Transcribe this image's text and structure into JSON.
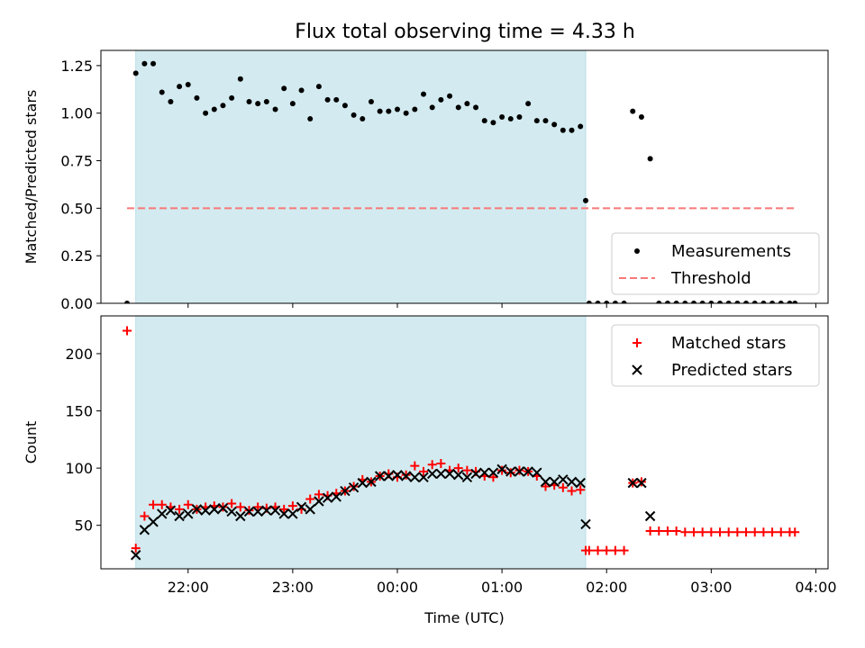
{
  "chart_data": [
    {
      "type": "scatter",
      "title": "Flux total observing time = 4.33 h",
      "ylabel": "Matched/Predicted stars",
      "ylim": [
        0,
        1.33
      ],
      "yticks": [
        0.0,
        0.25,
        0.5,
        0.75,
        1.0,
        1.25
      ],
      "ytick_labels": [
        "0.00",
        "0.25",
        "0.50",
        "0.75",
        "1.00",
        "1.25"
      ],
      "legend_position": "bottom-right",
      "shaded_region": {
        "x": [
          "21:30",
          "01:48"
        ],
        "color": "#d3ebf0"
      },
      "series": [
        {
          "name": "Measurements",
          "marker": "dot",
          "color": "#000000",
          "x": [
            "21:25",
            "21:30",
            "21:35",
            "21:40",
            "21:45",
            "21:50",
            "21:55",
            "22:00",
            "22:05",
            "22:10",
            "22:15",
            "22:20",
            "22:25",
            "22:30",
            "22:35",
            "22:40",
            "22:45",
            "22:50",
            "22:55",
            "23:00",
            "23:05",
            "23:10",
            "23:15",
            "23:20",
            "23:25",
            "23:30",
            "23:35",
            "23:40",
            "23:45",
            "23:50",
            "23:55",
            "00:00",
            "00:05",
            "00:10",
            "00:15",
            "00:20",
            "00:25",
            "00:30",
            "00:35",
            "00:40",
            "00:45",
            "00:50",
            "00:55",
            "01:00",
            "01:05",
            "01:10",
            "01:15",
            "01:20",
            "01:25",
            "01:30",
            "01:35",
            "01:40",
            "01:45",
            "01:48",
            "01:50",
            "01:55",
            "02:00",
            "02:05",
            "02:10",
            "02:15",
            "02:20",
            "02:25",
            "02:30",
            "02:35",
            "02:40",
            "02:45",
            "02:50",
            "02:55",
            "03:00",
            "03:05",
            "03:10",
            "03:15",
            "03:20",
            "03:25",
            "03:30",
            "03:35",
            "03:40",
            "03:45",
            "03:48"
          ],
          "y": [
            0.0,
            1.21,
            1.26,
            1.26,
            1.11,
            1.06,
            1.14,
            1.15,
            1.08,
            1.0,
            1.02,
            1.04,
            1.08,
            1.18,
            1.06,
            1.05,
            1.06,
            1.02,
            1.13,
            1.05,
            1.12,
            0.97,
            1.14,
            1.07,
            1.07,
            1.04,
            0.99,
            0.97,
            1.06,
            1.01,
            1.01,
            1.02,
            1.0,
            1.02,
            1.1,
            1.03,
            1.07,
            1.09,
            1.03,
            1.05,
            1.03,
            0.96,
            0.95,
            0.98,
            0.97,
            0.98,
            1.05,
            0.96,
            0.96,
            0.94,
            0.91,
            0.91,
            0.93,
            0.54,
            0.0,
            0.0,
            0.0,
            0.0,
            0.0,
            1.01,
            0.98,
            0.76,
            0.0,
            0.0,
            0.0,
            0.0,
            0.0,
            0.0,
            0.0,
            0.0,
            0.0,
            0.0,
            0.0,
            0.0,
            0.0,
            0.0,
            0.0,
            0.0,
            0.0
          ]
        },
        {
          "name": "Threshold",
          "marker": "dashed-line",
          "color": "#f87878",
          "x": [
            "21:25",
            "03:48"
          ],
          "y": [
            0.5,
            0.5
          ]
        }
      ]
    },
    {
      "type": "scatter",
      "xlabel": "Time (UTC)",
      "ylabel": "Count",
      "ylim": [
        12,
        233
      ],
      "yticks": [
        50,
        100,
        150,
        200
      ],
      "ytick_labels": [
        "50",
        "100",
        "150",
        "200"
      ],
      "xticks": [
        "22:00",
        "23:00",
        "00:00",
        "01:00",
        "02:00",
        "03:00",
        "04:00"
      ],
      "legend_position": "top-right",
      "shaded_region": {
        "x": [
          "21:30",
          "01:48"
        ],
        "color": "#d3ebf0"
      },
      "series": [
        {
          "name": "Matched stars",
          "marker": "plus",
          "color": "#ff0000",
          "x": [
            "21:25",
            "21:30",
            "21:35",
            "21:40",
            "21:45",
            "21:50",
            "21:55",
            "22:00",
            "22:05",
            "22:10",
            "22:15",
            "22:20",
            "22:25",
            "22:30",
            "22:35",
            "22:40",
            "22:45",
            "22:50",
            "22:55",
            "23:00",
            "23:05",
            "23:10",
            "23:15",
            "23:20",
            "23:25",
            "23:30",
            "23:35",
            "23:40",
            "23:45",
            "23:50",
            "23:55",
            "00:00",
            "00:05",
            "00:10",
            "00:15",
            "00:20",
            "00:25",
            "00:30",
            "00:35",
            "00:40",
            "00:45",
            "00:50",
            "00:55",
            "01:00",
            "01:05",
            "01:10",
            "01:15",
            "01:20",
            "01:25",
            "01:30",
            "01:35",
            "01:40",
            "01:45",
            "01:48",
            "01:50",
            "01:55",
            "02:00",
            "02:05",
            "02:10",
            "02:15",
            "02:20",
            "02:25",
            "02:30",
            "02:35",
            "02:40",
            "02:45",
            "02:50",
            "02:55",
            "03:00",
            "03:05",
            "03:10",
            "03:15",
            "03:20",
            "03:25",
            "03:30",
            "03:35",
            "03:40",
            "03:45",
            "03:48"
          ],
          "y": [
            220,
            30,
            58,
            68,
            68,
            66,
            64,
            68,
            64,
            66,
            67,
            66,
            69,
            66,
            63,
            66,
            65,
            66,
            64,
            67,
            64,
            73,
            77,
            76,
            78,
            80,
            84,
            90,
            88,
            93,
            95,
            92,
            94,
            102,
            97,
            103,
            104,
            98,
            100,
            98,
            97,
            93,
            92,
            98,
            96,
            98,
            97,
            93,
            84,
            85,
            83,
            80,
            81,
            28,
            28,
            28,
            28,
            28,
            28,
            87,
            88,
            45,
            45,
            45,
            45,
            44,
            44,
            44,
            44,
            44,
            44,
            44,
            44,
            44,
            44,
            44,
            44,
            44,
            44
          ]
        },
        {
          "name": "Predicted stars",
          "marker": "x",
          "color": "#000000",
          "x": [
            "21:30",
            "21:35",
            "21:40",
            "21:45",
            "21:50",
            "21:55",
            "22:00",
            "22:05",
            "22:10",
            "22:15",
            "22:20",
            "22:25",
            "22:30",
            "22:35",
            "22:40",
            "22:45",
            "22:50",
            "22:55",
            "23:00",
            "23:05",
            "23:10",
            "23:15",
            "23:20",
            "23:25",
            "23:30",
            "23:35",
            "23:40",
            "23:45",
            "23:50",
            "23:55",
            "00:00",
            "00:05",
            "00:10",
            "00:15",
            "00:20",
            "00:25",
            "00:30",
            "00:35",
            "00:40",
            "00:45",
            "00:50",
            "00:55",
            "01:00",
            "01:05",
            "01:10",
            "01:15",
            "01:20",
            "01:25",
            "01:30",
            "01:35",
            "01:40",
            "01:45",
            "01:48",
            "02:15",
            "02:20",
            "02:25"
          ],
          "y": [
            24,
            46,
            53,
            60,
            63,
            58,
            60,
            64,
            63,
            64,
            65,
            62,
            58,
            62,
            62,
            63,
            63,
            60,
            60,
            66,
            64,
            71,
            74,
            75,
            80,
            83,
            87,
            88,
            93,
            93,
            94,
            93,
            92,
            92,
            95,
            95,
            95,
            94,
            92,
            95,
            96,
            96,
            99,
            97,
            97,
            97,
            96,
            88,
            88,
            90,
            88,
            87,
            51,
            87,
            87,
            58
          ]
        }
      ]
    }
  ]
}
